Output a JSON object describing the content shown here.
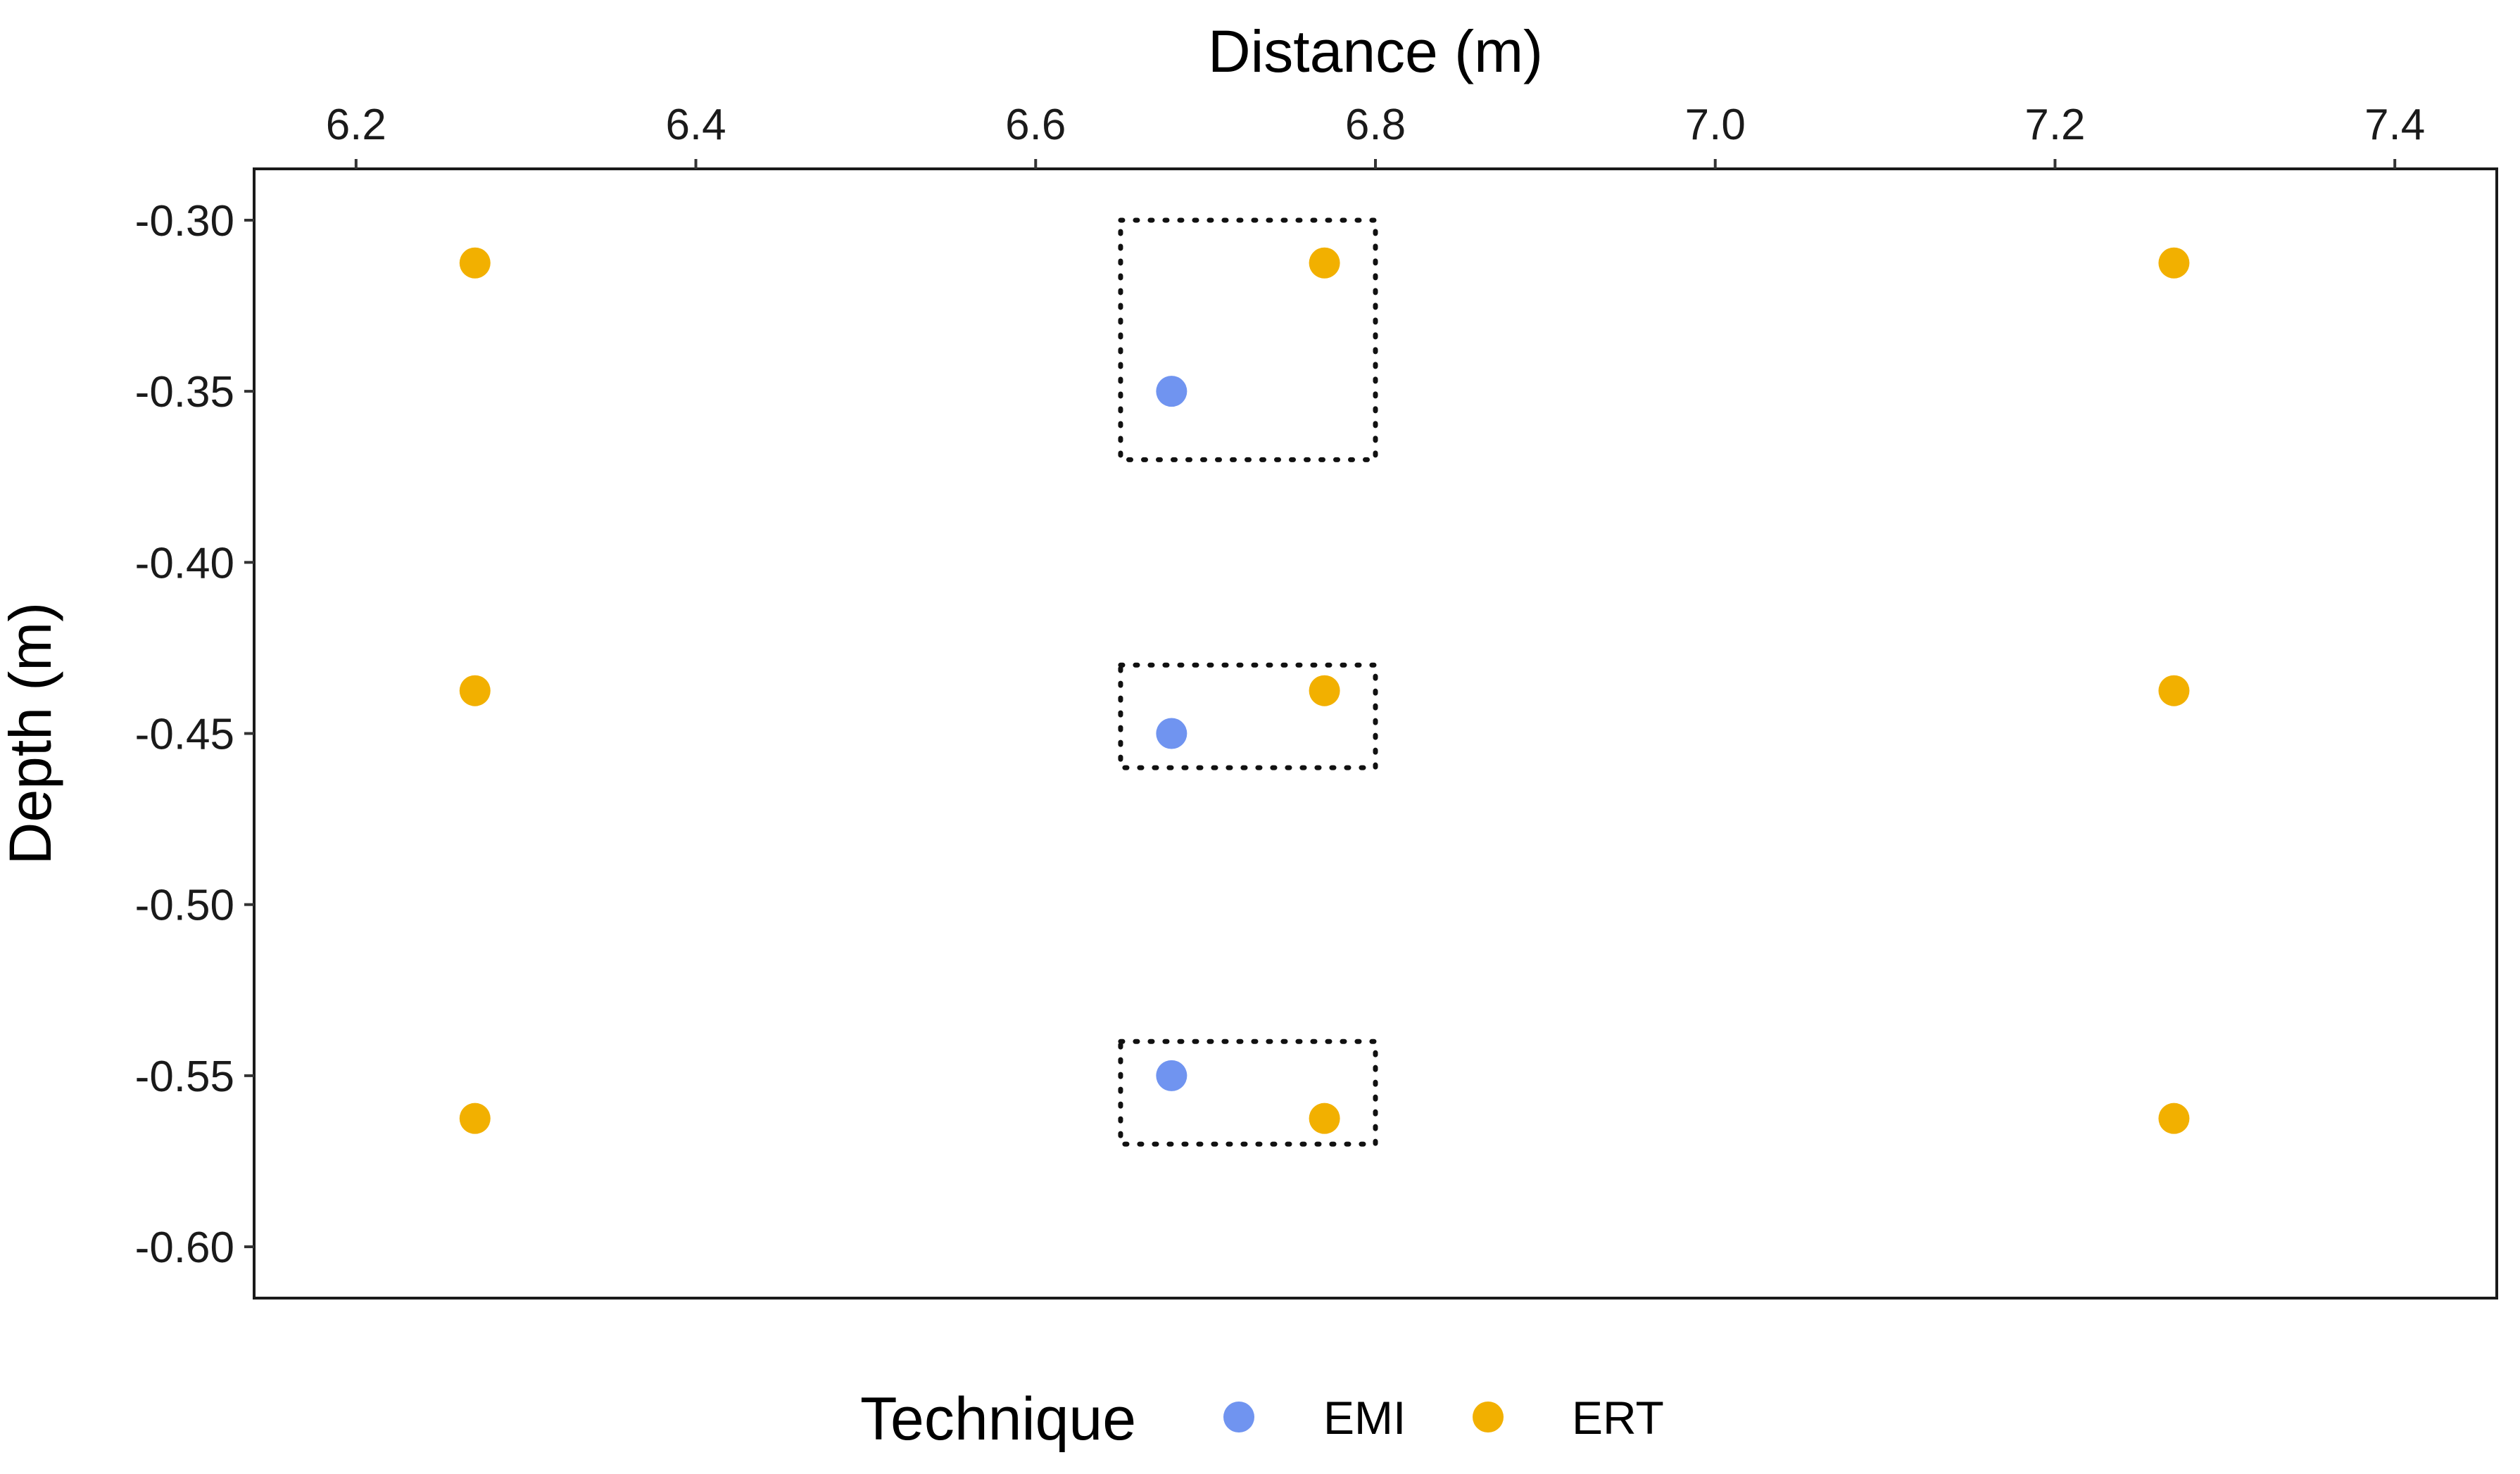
{
  "chart_data": {
    "type": "scatter",
    "xlabel": "Distance (m)",
    "ylabel": "Depth (m)",
    "x_axis_position": "top",
    "xlim": [
      6.14,
      7.46
    ],
    "ylim": [
      -0.615,
      -0.285
    ],
    "x_ticks": [
      6.2,
      6.4,
      6.6,
      6.8,
      7.0,
      7.2,
      7.4
    ],
    "x_tick_labels": [
      "6.2",
      "6.4",
      "6.6",
      "6.8",
      "7.0",
      "7.2",
      "7.4"
    ],
    "y_ticks": [
      -0.3,
      -0.35,
      -0.4,
      -0.45,
      -0.5,
      -0.55,
      -0.6
    ],
    "y_tick_labels": [
      "-0.30",
      "-0.35",
      "-0.40",
      "-0.45",
      "-0.50",
      "-0.55",
      "-0.60"
    ],
    "grid": false,
    "legend": {
      "title": "Technique",
      "placement": "bottom"
    },
    "series": [
      {
        "name": "EMI",
        "color": "#7094f0",
        "points": [
          {
            "x": 6.68,
            "y": -0.35
          },
          {
            "x": 6.68,
            "y": -0.45
          },
          {
            "x": 6.68,
            "y": -0.55
          }
        ]
      },
      {
        "name": "ERT",
        "color": "#f2b000",
        "points": [
          {
            "x": 6.27,
            "y": -0.3125
          },
          {
            "x": 6.77,
            "y": -0.3125
          },
          {
            "x": 7.27,
            "y": -0.3125
          },
          {
            "x": 6.27,
            "y": -0.4375
          },
          {
            "x": 6.77,
            "y": -0.4375
          },
          {
            "x": 7.27,
            "y": -0.4375
          },
          {
            "x": 6.27,
            "y": -0.5625
          },
          {
            "x": 6.77,
            "y": -0.5625
          },
          {
            "x": 7.27,
            "y": -0.5625
          }
        ]
      }
    ],
    "annotations": [
      {
        "type": "dotted-rectangle",
        "x": [
          6.65,
          6.8
        ],
        "y": [
          -0.3,
          -0.37
        ]
      },
      {
        "type": "dotted-rectangle",
        "x": [
          6.65,
          6.8
        ],
        "y": [
          -0.43,
          -0.46
        ]
      },
      {
        "type": "dotted-rectangle",
        "x": [
          6.65,
          6.8
        ],
        "y": [
          -0.54,
          -0.57
        ]
      }
    ]
  }
}
